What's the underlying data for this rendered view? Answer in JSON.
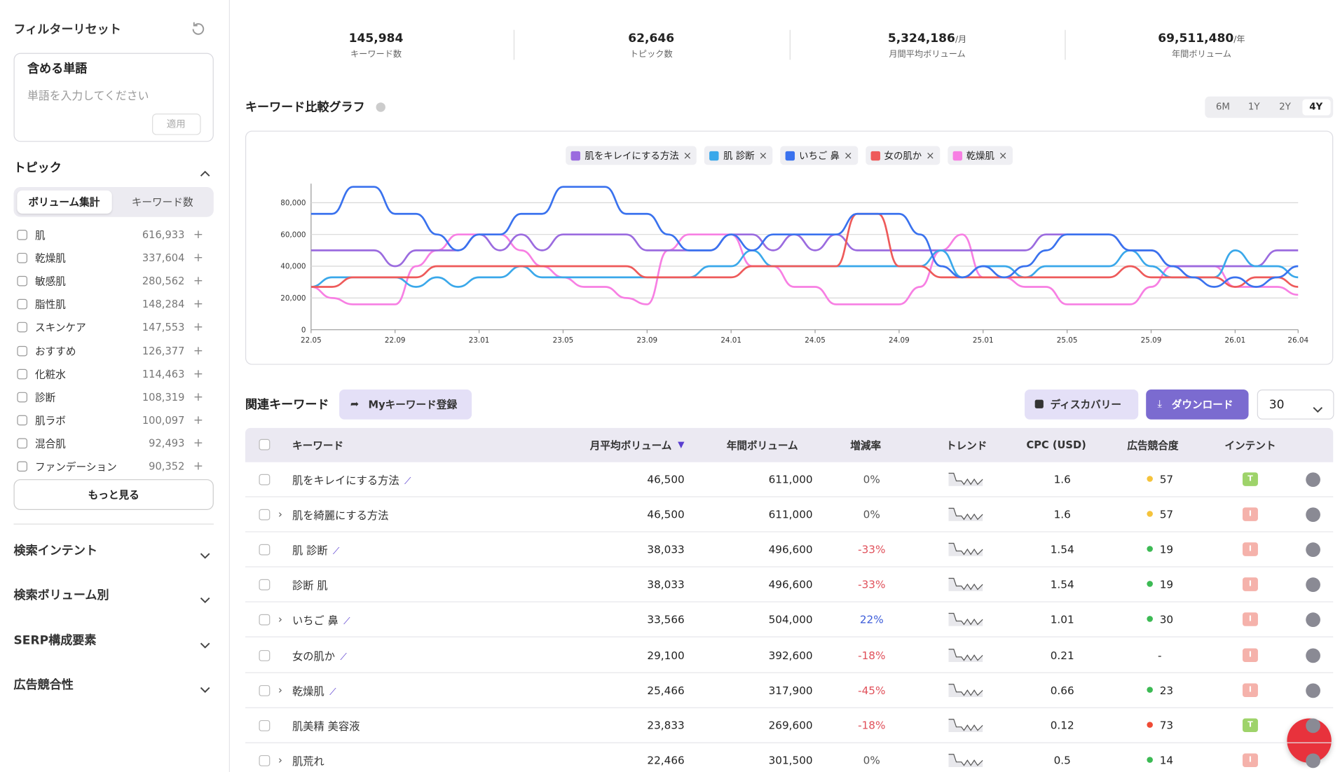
{
  "sidebar": {
    "reset": "フィルターリセット",
    "include_title": "含める単語",
    "include_placeholder": "単語を入力してください",
    "apply": "適用",
    "topic_title": "トピック",
    "tabs": [
      "ボリューム集計",
      "キーワード数"
    ],
    "topics": [
      {
        "name": "肌",
        "count": "616,933"
      },
      {
        "name": "乾燥肌",
        "count": "337,604"
      },
      {
        "name": "敏感肌",
        "count": "280,562"
      },
      {
        "name": "脂性肌",
        "count": "148,284"
      },
      {
        "name": "スキンケア",
        "count": "147,553"
      },
      {
        "name": "おすすめ",
        "count": "126,377"
      },
      {
        "name": "化粧水",
        "count": "114,463"
      },
      {
        "name": "診断",
        "count": "108,319"
      },
      {
        "name": "肌ラボ",
        "count": "100,097"
      },
      {
        "name": "混合肌",
        "count": "92,493"
      },
      {
        "name": "ファンデーション",
        "count": "90,352"
      }
    ],
    "more": "もっと見る",
    "sections": [
      "検索インテント",
      "検索ボリューム別",
      "SERP構成要素",
      "広告競合性"
    ]
  },
  "stats": [
    {
      "value": "145,984",
      "label": "キーワード数"
    },
    {
      "value": "62,646",
      "label": "トピック数"
    },
    {
      "value": "5,324,186",
      "unit": "/月",
      "label": "月間平均ボリューム"
    },
    {
      "value": "69,511,480",
      "unit": "/年",
      "label": "年間ボリューム"
    }
  ],
  "graph_title": "キーワード比較グラフ",
  "periods": [
    "6M",
    "1Y",
    "2Y",
    "4Y"
  ],
  "active_period": "4Y",
  "chart_data": {
    "type": "line",
    "categories": [
      "22.05",
      null,
      null,
      null,
      "22.09",
      null,
      null,
      null,
      "23.01",
      null,
      null,
      null,
      "23.05",
      null,
      null,
      null,
      "23.09",
      null,
      null,
      null,
      "24.01",
      null,
      null,
      null,
      "24.05",
      null,
      null,
      null,
      "24.09",
      null,
      null,
      null,
      "25.01",
      null,
      null,
      null,
      "25.05",
      null,
      null,
      null,
      "25.09",
      null,
      null,
      null,
      "26.01",
      null,
      null,
      "26.04"
    ],
    "ylim": [
      0,
      92000
    ],
    "yticks": [
      0,
      {
        "value": 20000,
        "label": "20,000"
      },
      {
        "value": 40000,
        "label": "40,000"
      },
      {
        "value": 60000,
        "label": "60,000"
      },
      {
        "value": 80000,
        "label": "80,000"
      }
    ],
    "grid": true,
    "series": [
      {
        "name": "肌をキレイにする方法",
        "color": "#9b6bdf",
        "values": [
          50000,
          50000,
          50000,
          50000,
          40000,
          50000,
          50000,
          50000,
          60000,
          50000,
          60000,
          50000,
          60000,
          60000,
          60000,
          60000,
          50000,
          50000,
          50000,
          50000,
          60000,
          60000,
          50000,
          60000,
          50000,
          60000,
          50000,
          50000,
          50000,
          50000,
          50000,
          50000,
          50000,
          50000,
          50000,
          60000,
          60000,
          60000,
          60000,
          50000,
          50000,
          40000,
          40000,
          40000,
          40000,
          40000,
          50000,
          50000
        ]
      },
      {
        "name": "肌 診断",
        "color": "#3aa8ea",
        "values": [
          27000,
          33000,
          33000,
          33000,
          33000,
          27000,
          33000,
          27000,
          33000,
          33000,
          40000,
          33000,
          33000,
          33000,
          33000,
          33000,
          33000,
          33000,
          33000,
          40000,
          40000,
          50000,
          40000,
          40000,
          40000,
          40000,
          40000,
          40000,
          40000,
          40000,
          50000,
          33000,
          40000,
          40000,
          33000,
          40000,
          40000,
          40000,
          40000,
          50000,
          40000,
          33000,
          33000,
          33000,
          50000,
          40000,
          40000,
          33000
        ]
      },
      {
        "name": "いちご 鼻",
        "color": "#3a72ee",
        "values": [
          73000,
          73000,
          90000,
          90000,
          73000,
          73000,
          60000,
          50000,
          60000,
          60000,
          73000,
          73000,
          90000,
          90000,
          90000,
          73000,
          73000,
          60000,
          50000,
          50000,
          60000,
          50000,
          60000,
          60000,
          60000,
          60000,
          73000,
          73000,
          73000,
          60000,
          40000,
          33000,
          40000,
          33000,
          40000,
          50000,
          60000,
          60000,
          60000,
          50000,
          50000,
          40000,
          33000,
          27000,
          33000,
          27000,
          33000,
          40000
        ]
      },
      {
        "name": "女の肌か",
        "color": "#ee5a5a",
        "values": [
          27000,
          27000,
          33000,
          33000,
          33000,
          33000,
          40000,
          40000,
          40000,
          40000,
          40000,
          40000,
          40000,
          40000,
          40000,
          40000,
          33000,
          33000,
          33000,
          33000,
          33000,
          40000,
          40000,
          40000,
          40000,
          40000,
          73000,
          73000,
          40000,
          40000,
          33000,
          33000,
          33000,
          33000,
          33000,
          33000,
          33000,
          33000,
          33000,
          40000,
          33000,
          33000,
          33000,
          33000,
          27000,
          33000,
          33000,
          27000
        ]
      },
      {
        "name": "乾燥肌",
        "color": "#f77fe3",
        "values": [
          27000,
          20000,
          16000,
          16000,
          16000,
          40000,
          50000,
          60000,
          60000,
          60000,
          50000,
          40000,
          33000,
          27000,
          27000,
          20000,
          16000,
          50000,
          60000,
          60000,
          60000,
          40000,
          40000,
          27000,
          27000,
          16000,
          16000,
          16000,
          16000,
          27000,
          50000,
          60000,
          33000,
          33000,
          27000,
          27000,
          16000,
          16000,
          16000,
          16000,
          27000,
          40000,
          40000,
          40000,
          27000,
          27000,
          27000,
          22000
        ]
      }
    ]
  },
  "related": {
    "title": "関連キーワード",
    "my_keyword": "Myキーワード登録",
    "discovery": "ディスカバリー",
    "download": "ダウンロード",
    "page_size": "30",
    "headers": [
      "キーワード",
      "月平均ボリューム",
      "年間ボリューム",
      "増減率",
      "トレンド",
      "CPC (USD)",
      "広告競合度",
      "インテント"
    ],
    "rows": [
      {
        "keyword": "肌をキレイにする方法",
        "expand": false,
        "chart": true,
        "monthly": "46,500",
        "annual": "611,000",
        "change": "0%",
        "change_color": "#555555",
        "cpc": "1.6",
        "competition": "57",
        "dot_color": "#f5c33b",
        "intent": "T",
        "intent_color": "#9ed36a"
      },
      {
        "keyword": "肌を綺麗にする方法",
        "expand": true,
        "chart": false,
        "monthly": "46,500",
        "annual": "611,000",
        "change": "0%",
        "change_color": "#555555",
        "cpc": "1.6",
        "competition": "57",
        "dot_color": "#f5c33b",
        "intent": "I",
        "intent_color": "#f5b2ab"
      },
      {
        "keyword": "肌 診断",
        "expand": false,
        "chart": true,
        "monthly": "38,033",
        "annual": "496,600",
        "change": "-33%",
        "change_color": "#e0505a",
        "cpc": "1.54",
        "competition": "19",
        "dot_color": "#3cba54",
        "intent": "I",
        "intent_color": "#f5b2ab"
      },
      {
        "keyword": "診断 肌",
        "expand": false,
        "chart": false,
        "monthly": "38,033",
        "annual": "496,600",
        "change": "-33%",
        "change_color": "#e0505a",
        "cpc": "1.54",
        "competition": "19",
        "dot_color": "#3cba54",
        "intent": "I",
        "intent_color": "#f5b2ab"
      },
      {
        "keyword": "いちご 鼻",
        "expand": true,
        "chart": true,
        "monthly": "33,566",
        "annual": "504,000",
        "change": "22%",
        "change_color": "#3b5bd9",
        "cpc": "1.01",
        "competition": "30",
        "dot_color": "#3cba54",
        "intent": "I",
        "intent_color": "#f5b2ab"
      },
      {
        "keyword": "女の肌か",
        "expand": false,
        "chart": true,
        "monthly": "29,100",
        "annual": "392,600",
        "change": "-18%",
        "change_color": "#e0505a",
        "cpc": "0.21",
        "competition": "-",
        "intent": "I",
        "intent_color": "#f5b2ab"
      },
      {
        "keyword": "乾燥肌",
        "expand": true,
        "chart": true,
        "monthly": "25,466",
        "annual": "317,900",
        "change": "-45%",
        "change_color": "#e0505a",
        "cpc": "0.66",
        "competition": "23",
        "dot_color": "#3cba54",
        "intent": "I",
        "intent_color": "#f5b2ab"
      },
      {
        "keyword": "肌美精 美容液",
        "expand": false,
        "chart": false,
        "monthly": "23,833",
        "annual": "269,600",
        "change": "-18%",
        "change_color": "#e0505a",
        "cpc": "0.12",
        "competition": "73",
        "dot_color": "#ef4b35",
        "intent": "T",
        "intent_color": "#9ed36a"
      },
      {
        "keyword": "肌荒れ",
        "expand": true,
        "chart": false,
        "monthly": "22,466",
        "annual": "301,500",
        "change": "0%",
        "change_color": "#555555",
        "cpc": "0.5",
        "competition": "14",
        "dot_color": "#3cba54",
        "intent": "I",
        "intent_color": "#f5b2ab"
      }
    ]
  }
}
